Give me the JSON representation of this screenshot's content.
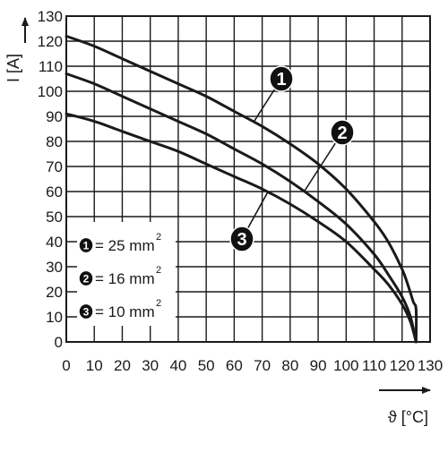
{
  "chart_data": {
    "type": "line",
    "title": "",
    "xlabel": "ϑ [°C]",
    "ylabel": "I [A]",
    "xlim": [
      0,
      130
    ],
    "ylim": [
      0,
      130
    ],
    "grid": true,
    "x_ticks": [
      0,
      10,
      20,
      30,
      40,
      50,
      60,
      70,
      80,
      90,
      100,
      110,
      120,
      130
    ],
    "y_ticks": [
      0,
      10,
      20,
      30,
      40,
      50,
      60,
      70,
      80,
      90,
      100,
      110,
      120,
      130
    ],
    "x_tick_labels": [
      "0",
      "10",
      "20",
      "30",
      "40",
      "50",
      "60",
      "70",
      "80",
      "90",
      "100",
      "110",
      "120",
      "130"
    ],
    "y_tick_labels": [
      "0",
      "10",
      "20",
      "30",
      "40",
      "50",
      "60",
      "70",
      "80",
      "90",
      "100",
      "110",
      "120",
      "130"
    ],
    "legend": {
      "placement": "lower-left",
      "entries": [
        {
          "marker": "1",
          "text": "= 25 mm",
          "sup": "2"
        },
        {
          "marker": "2",
          "text": "= 16 mm",
          "sup": "2"
        },
        {
          "marker": "3",
          "text": "= 10 mm",
          "sup": "2"
        }
      ]
    },
    "series": [
      {
        "marker": "1",
        "x": [
          0,
          10,
          20,
          30,
          40,
          50,
          60,
          70,
          80,
          90,
          100,
          110,
          115,
          120,
          122,
          124,
          125,
          125
        ],
        "y": [
          122,
          118,
          113,
          108,
          103,
          98,
          92,
          86,
          79,
          71,
          61,
          48,
          40,
          29,
          23,
          16,
          13,
          0
        ]
      },
      {
        "marker": "2",
        "x": [
          0,
          10,
          20,
          30,
          40,
          50,
          60,
          70,
          80,
          90,
          100,
          110,
          115,
          120,
          123,
          125
        ],
        "y": [
          107,
          103,
          98,
          93,
          88,
          83,
          77,
          71,
          64,
          56,
          47,
          35,
          27,
          18,
          10,
          0
        ]
      },
      {
        "marker": "3",
        "x": [
          0,
          10,
          20,
          30,
          40,
          50,
          60,
          70,
          80,
          90,
          100,
          110,
          115,
          120,
          123,
          125
        ],
        "y": [
          91,
          88,
          84,
          80,
          76,
          71,
          66,
          61,
          55,
          48,
          40,
          29,
          23,
          15,
          8,
          0
        ]
      }
    ],
    "callouts": [
      {
        "marker": "1",
        "series_index": 0,
        "x_anchor": 67
      },
      {
        "marker": "2",
        "series_index": 1,
        "x_anchor": 85
      },
      {
        "marker": "3",
        "series_index": 2,
        "x_anchor": 72
      }
    ],
    "line_color": "#1a1a1a",
    "grid_color": "#1a1a1a",
    "marker_fill": "#111111",
    "marker_text_color": "#ffffff"
  }
}
